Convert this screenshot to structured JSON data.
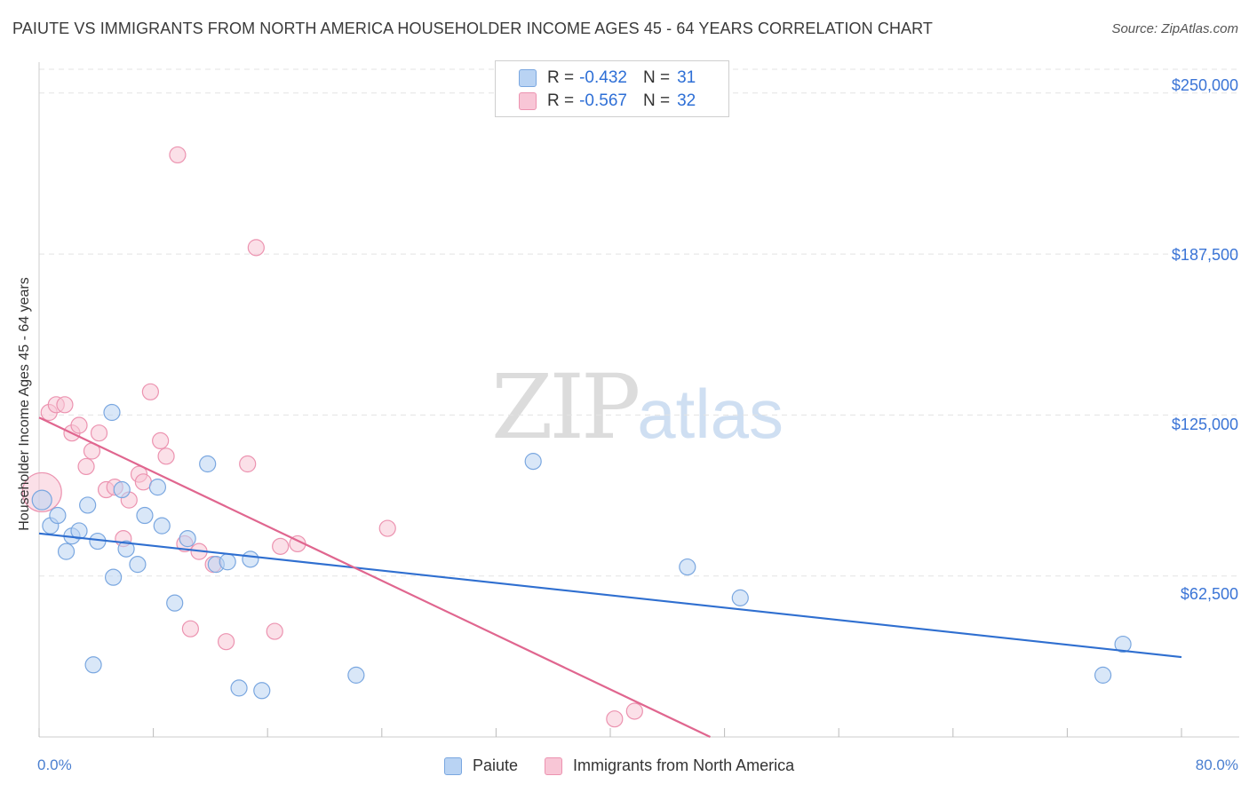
{
  "title": "PAIUTE VS IMMIGRANTS FROM NORTH AMERICA HOUSEHOLDER INCOME AGES 45 - 64 YEARS CORRELATION CHART",
  "source": "Source: ZipAtlas.com",
  "watermark": {
    "zip": "ZIP",
    "atlas": "atlas"
  },
  "legend": {
    "paiute": {
      "r_label": "R =",
      "r_value": "-0.432",
      "n_label": "N =",
      "n_value": "31"
    },
    "immigrants": {
      "r_label": "R =",
      "r_value": "-0.567",
      "n_label": "N =",
      "n_value": "32"
    }
  },
  "bottom_legend": {
    "paiute": "Paiute",
    "immigrants": "Immigrants from North America"
  },
  "colors": {
    "paiute_fill": "#b9d3f3",
    "paiute_stroke": "#7aa7e0",
    "paiute_line": "#2f6fd0",
    "imm_fill": "#f8c6d6",
    "imm_stroke": "#ec93b0",
    "imm_line": "#e0668f",
    "grid": "#e3e3e3",
    "axis_text": "#3a74d6"
  },
  "chart_data": {
    "type": "scatter",
    "title": "PAIUTE VS IMMIGRANTS FROM NORTH AMERICA HOUSEHOLDER INCOME AGES 45 - 64 YEARS CORRELATION CHART",
    "xlabel": "",
    "ylabel": "Householder Income Ages 45 - 64 years",
    "xlim": [
      0,
      80
    ],
    "ylim": [
      0,
      262000
    ],
    "x_tick_labels": [
      "0.0%",
      "80.0%"
    ],
    "y_ticks": [
      62500,
      125000,
      187500,
      250000
    ],
    "y_tick_labels": [
      "$62,500",
      "$125,000",
      "$187,500",
      "$250,000"
    ],
    "legend_position": "top-center",
    "series": [
      {
        "name": "Paiute",
        "r": -0.432,
        "n": 31,
        "points": [
          [
            0.2,
            92000
          ],
          [
            0.8,
            82000
          ],
          [
            1.3,
            86000
          ],
          [
            1.9,
            72000
          ],
          [
            2.3,
            78000
          ],
          [
            2.8,
            80000
          ],
          [
            3.4,
            90000
          ],
          [
            3.8,
            28000
          ],
          [
            4.1,
            76000
          ],
          [
            5.1,
            126000
          ],
          [
            5.2,
            62000
          ],
          [
            5.8,
            96000
          ],
          [
            6.1,
            73000
          ],
          [
            6.9,
            67000
          ],
          [
            7.4,
            86000
          ],
          [
            8.3,
            97000
          ],
          [
            8.6,
            82000
          ],
          [
            9.5,
            52000
          ],
          [
            10.4,
            77000
          ],
          [
            11.8,
            106000
          ],
          [
            12.4,
            67000
          ],
          [
            13.2,
            68000
          ],
          [
            14.0,
            19000
          ],
          [
            14.8,
            69000
          ],
          [
            15.6,
            18000
          ],
          [
            22.2,
            24000
          ],
          [
            34.6,
            107000
          ],
          [
            45.4,
            66000
          ],
          [
            49.1,
            54000
          ],
          [
            74.5,
            24000
          ],
          [
            75.9,
            36000
          ]
        ],
        "trend": {
          "x0": 0,
          "y0": 79000,
          "x1": 80,
          "y1": 31000
        }
      },
      {
        "name": "Immigrants from North America",
        "r": -0.567,
        "n": 32,
        "points": [
          [
            0.2,
            95000
          ],
          [
            0.7,
            126000
          ],
          [
            1.2,
            129000
          ],
          [
            1.8,
            129000
          ],
          [
            2.3,
            118000
          ],
          [
            2.8,
            121000
          ],
          [
            3.3,
            105000
          ],
          [
            3.7,
            111000
          ],
          [
            4.2,
            118000
          ],
          [
            4.7,
            96000
          ],
          [
            5.3,
            97000
          ],
          [
            5.9,
            77000
          ],
          [
            6.3,
            92000
          ],
          [
            7.0,
            102000
          ],
          [
            7.3,
            99000
          ],
          [
            7.8,
            134000
          ],
          [
            8.5,
            115000
          ],
          [
            8.9,
            109000
          ],
          [
            9.7,
            226000
          ],
          [
            10.2,
            75000
          ],
          [
            10.6,
            42000
          ],
          [
            11.2,
            72000
          ],
          [
            12.2,
            67000
          ],
          [
            13.1,
            37000
          ],
          [
            14.6,
            106000
          ],
          [
            15.2,
            190000
          ],
          [
            16.5,
            41000
          ],
          [
            16.9,
            74000
          ],
          [
            18.1,
            75000
          ],
          [
            24.4,
            81000
          ],
          [
            40.3,
            7000
          ],
          [
            41.7,
            10000
          ]
        ],
        "trend": {
          "x0": 0,
          "y0": 124000,
          "x1": 47,
          "y1": 0
        }
      }
    ]
  }
}
